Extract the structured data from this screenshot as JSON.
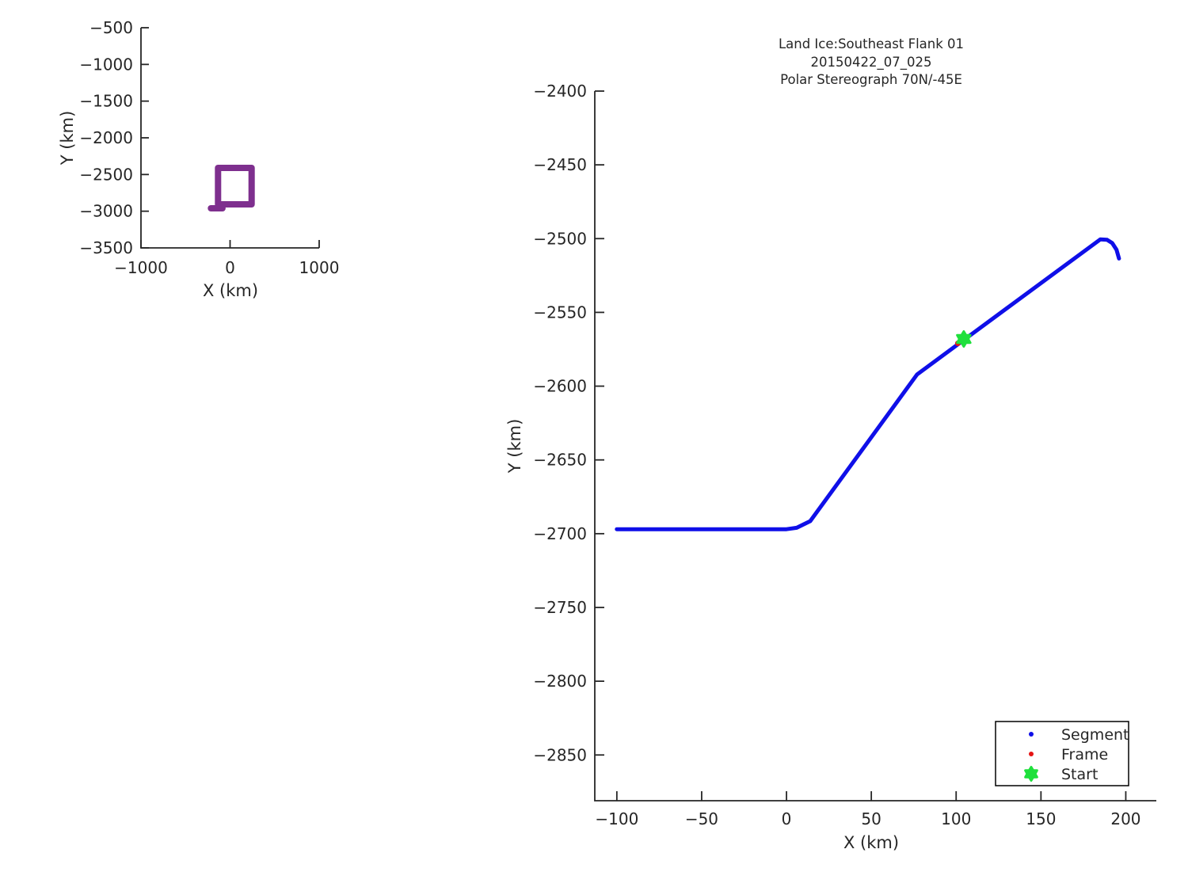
{
  "figure": {
    "background": "#ffffff",
    "text_color": "#262626",
    "axis_color": "#262626"
  },
  "chart_data": [
    {
      "id": "overview",
      "type": "line",
      "xlabel": "X (km)",
      "ylabel": "Y (km)",
      "xlim": [
        -1000,
        1000
      ],
      "ylim": [
        -3500,
        -500
      ],
      "xticks": [
        -1000,
        0,
        1000
      ],
      "yticks": [
        -500,
        -1000,
        -1500,
        -2000,
        -2500,
        -3000,
        -3500
      ],
      "grid": false,
      "series": [
        {
          "name": "flight-track-outline",
          "kind": "line",
          "color": "#7E2F8E",
          "linewidth": 8,
          "x": [
            -135,
            242,
            242,
            -135,
            -135
          ],
          "y": [
            -2410,
            -2410,
            -2906,
            -2906,
            -2410
          ]
        },
        {
          "name": "flight-track-start-leg",
          "kind": "line",
          "color": "#7E2F8E",
          "linewidth": 8,
          "x": [
            -215,
            -85
          ],
          "y": [
            -2960,
            -2960
          ]
        }
      ]
    },
    {
      "id": "main",
      "type": "line",
      "title_lines": [
        "Land Ice:Southeast Flank 01",
        "20150422_07_025",
        "Polar Stereograph 70N/-45E"
      ],
      "xlabel": "X (km)",
      "ylabel": "Y (km)",
      "xlim": [
        -113,
        218
      ],
      "ylim": [
        -2881,
        -2400
      ],
      "xticks": [
        -100,
        -50,
        0,
        50,
        100,
        150,
        200
      ],
      "yticks": [
        -2400,
        -2450,
        -2500,
        -2550,
        -2600,
        -2650,
        -2700,
        -2750,
        -2800,
        -2850
      ],
      "grid": false,
      "series": [
        {
          "name": "Segment",
          "kind": "line",
          "color": "#0f0fe8",
          "linewidth": 5,
          "x": [
            -100,
            0,
            6,
            14,
            77,
            185,
            189,
            192,
            194.5,
            196
          ],
          "y": [
            -2697,
            -2697,
            -2696,
            -2691.5,
            -2592,
            -2500.5,
            -2500.8,
            -2503,
            -2507.5,
            -2513.5
          ]
        },
        {
          "name": "Frame",
          "kind": "scatter",
          "marker": "dot",
          "color": "#e51414",
          "size": 3.5,
          "x": [
            101
          ],
          "y": [
            -2571
          ]
        },
        {
          "name": "Start",
          "kind": "scatter",
          "marker": "hexagram",
          "color": "#1fe03c",
          "size": 9.5,
          "x": [
            104.5
          ],
          "y": [
            -2568
          ]
        }
      ],
      "legend": {
        "position": "bottom-right",
        "items": [
          {
            "label": "Segment",
            "marker": "dot",
            "color": "#0f0fe8"
          },
          {
            "label": "Frame",
            "marker": "dot",
            "color": "#e51414"
          },
          {
            "label": "Start",
            "marker": "hexagram",
            "color": "#1fe03c"
          }
        ]
      }
    }
  ]
}
